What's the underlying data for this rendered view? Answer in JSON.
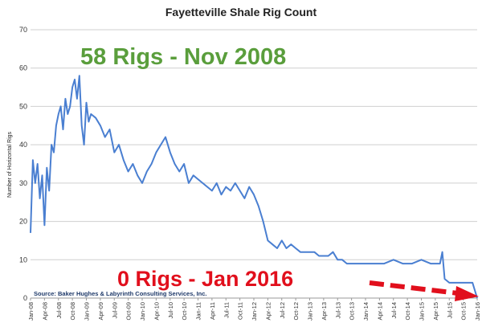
{
  "chart_data": {
    "type": "line",
    "title": "Fayetteville Shale Rig Count",
    "ylabel": "Number of Horizontal Rigs",
    "xlabel": "",
    "ylim": [
      0,
      70
    ],
    "yticks": [
      0,
      10,
      20,
      30,
      40,
      50,
      60,
      70
    ],
    "xlim": [
      "2008-01",
      "2016-01"
    ],
    "xtick_labels": [
      "Jan-08",
      "Apr-08",
      "Jul-08",
      "Oct-08",
      "Jan-09",
      "Apr-09",
      "Jul-09",
      "Oct-09",
      "Jan-10",
      "Apr-10",
      "Jul-10",
      "Oct-10",
      "Jan-11",
      "Apr-11",
      "Jul-11",
      "Oct-11",
      "Jan-12",
      "Apr-12",
      "Jul-12",
      "Oct-12",
      "Jan-13",
      "Apr-13",
      "Jul-13",
      "Oct-13",
      "Jan-14",
      "Apr-14",
      "Jul-14",
      "Oct-14",
      "Jan-15",
      "Apr-15",
      "Jul-15",
      "Oct-15",
      "Jan-16"
    ],
    "grid": "horizontal",
    "series_color": "#4a7fd1",
    "x": [
      "2008-01",
      "2008-01",
      "2008-02",
      "2008-02",
      "2008-03",
      "2008-03",
      "2008-04",
      "2008-04",
      "2008-05",
      "2008-05",
      "2008-06",
      "2008-06",
      "2008-07",
      "2008-07",
      "2008-08",
      "2008-08",
      "2008-09",
      "2008-09",
      "2008-10",
      "2008-10",
      "2008-11",
      "2008-11",
      "2008-12",
      "2008-12",
      "2009-01",
      "2009-01",
      "2009-02",
      "2009-03",
      "2009-04",
      "2009-05",
      "2009-06",
      "2009-07",
      "2009-08",
      "2009-09",
      "2009-10",
      "2009-11",
      "2009-12",
      "2010-01",
      "2010-02",
      "2010-03",
      "2010-04",
      "2010-05",
      "2010-06",
      "2010-07",
      "2010-08",
      "2010-09",
      "2010-10",
      "2010-11",
      "2010-12",
      "2011-01",
      "2011-02",
      "2011-03",
      "2011-04",
      "2011-05",
      "2011-06",
      "2011-07",
      "2011-08",
      "2011-09",
      "2011-10",
      "2011-11",
      "2011-12",
      "2012-01",
      "2012-02",
      "2012-03",
      "2012-04",
      "2012-05",
      "2012-06",
      "2012-07",
      "2012-08",
      "2012-09",
      "2012-10",
      "2012-11",
      "2012-12",
      "2013-01",
      "2013-02",
      "2013-03",
      "2013-04",
      "2013-05",
      "2013-06",
      "2013-07",
      "2013-08",
      "2013-09",
      "2013-10",
      "2013-11",
      "2013-12",
      "2014-01",
      "2014-03",
      "2014-05",
      "2014-07",
      "2014-09",
      "2014-11",
      "2015-01",
      "2015-03",
      "2015-05",
      "2015-05",
      "2015-06",
      "2015-07",
      "2015-09",
      "2015-11",
      "2015-12",
      "2016-01"
    ],
    "y": [
      17,
      36,
      30,
      35,
      26,
      32,
      19,
      34,
      28,
      40,
      38,
      45,
      48,
      50,
      44,
      52,
      48,
      50,
      55,
      57,
      52,
      58,
      45,
      40,
      51,
      46,
      48,
      47,
      45,
      42,
      44,
      38,
      40,
      36,
      33,
      35,
      32,
      30,
      33,
      35,
      38,
      40,
      42,
      38,
      35,
      33,
      35,
      30,
      32,
      31,
      30,
      29,
      28,
      30,
      27,
      29,
      28,
      30,
      28,
      26,
      29,
      27,
      24,
      20,
      15,
      14,
      13,
      15,
      13,
      14,
      13,
      12,
      12,
      12,
      12,
      11,
      11,
      11,
      12,
      10,
      10,
      9,
      9,
      9,
      9,
      9,
      9,
      9,
      10,
      9,
      9,
      10,
      9,
      9,
      12,
      5,
      4,
      4,
      4,
      4,
      0
    ]
  },
  "annotations": {
    "peak": "58 Rigs - Nov 2008",
    "current": "0 Rigs - Jan 2016",
    "source": "Source: Baker Hughes & Labyrinth Consulting Services, Inc."
  },
  "colors": {
    "peak_text": "#5a9e3c",
    "current_text": "#e10f1c",
    "arrow": "#e10f1c"
  }
}
